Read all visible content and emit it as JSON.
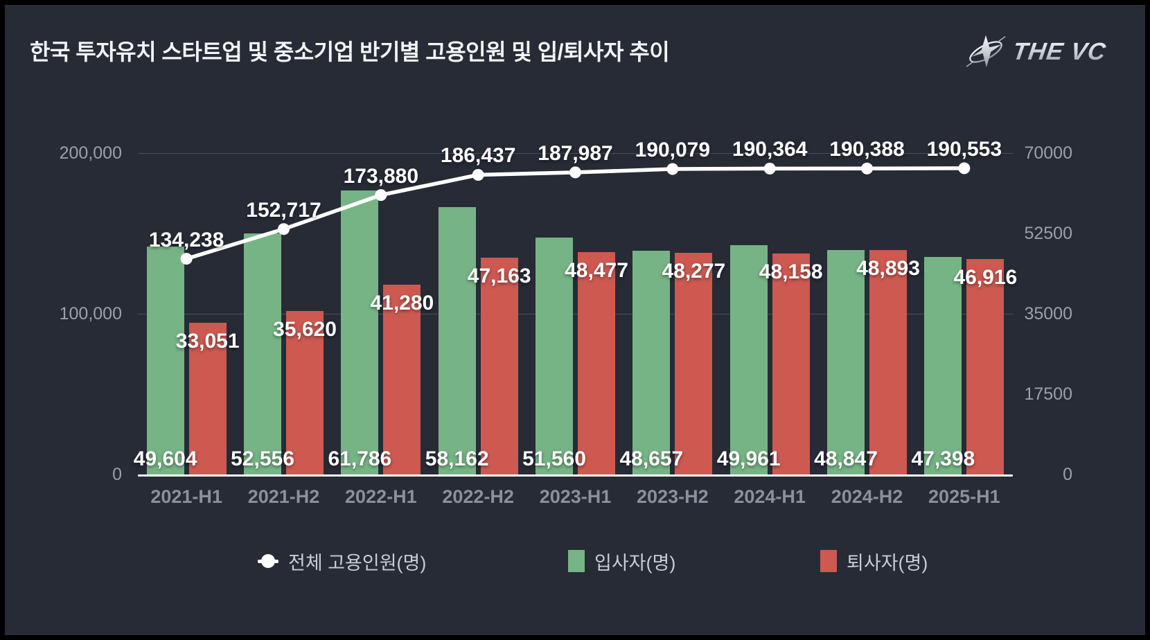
{
  "header": {
    "title": "한국 투자유치 스타트업 및 중소기업 반기별 고용인원 및 입/퇴사자 추이",
    "brand_text": "THE VC"
  },
  "colors": {
    "background": "#272b36",
    "frame_border": "#000000",
    "line_series": "#ffffff",
    "hires_green": "#76b485",
    "leavers_red": "#cd5951",
    "gridline": "#4b505b",
    "axis_tick_text": "#9aa0ac",
    "x_axis_text": "#8b909c",
    "legend_text": "#c8ccd4",
    "data_label_text": "#ffffff"
  },
  "chart_data": {
    "type": "combo: line + grouped bar",
    "title": "한국 투자유치 스타트업 및 중소기업 반기별 고용인원 및 입/퇴사자 추이",
    "categories": [
      "2021-H1",
      "2021-H2",
      "2022-H1",
      "2022-H2",
      "2023-H1",
      "2023-H2",
      "2024-H1",
      "2024-H2",
      "2025-H1"
    ],
    "series": [
      {
        "name": "전체 고용인원(명)",
        "type": "line",
        "y_axis": "left",
        "color": "#ffffff",
        "values": [
          134238,
          152717,
          173880,
          186437,
          187987,
          190079,
          190364,
          190388,
          190553
        ]
      },
      {
        "name": "입사자(명)",
        "type": "bar",
        "y_axis": "right",
        "color": "#76b485",
        "values": [
          49604,
          52556,
          61786,
          58162,
          51560,
          48657,
          49961,
          48847,
          47398
        ]
      },
      {
        "name": "퇴사자(명)",
        "type": "bar",
        "y_axis": "right",
        "color": "#cd5951",
        "values": [
          33051,
          35620,
          41280,
          47163,
          48477,
          48277,
          48158,
          48893,
          46916
        ]
      }
    ],
    "left_axis": {
      "min": 0,
      "max": 200000,
      "tick_values": [
        0,
        100000,
        200000
      ],
      "tick_labels": [
        "0",
        "100,000",
        "200,000"
      ]
    },
    "right_axis": {
      "min": 0,
      "max": 70000,
      "tick_values": [
        0,
        17500,
        35000,
        52500,
        70000
      ],
      "tick_labels": [
        "0",
        "17500",
        "35000",
        "52500",
        "70000"
      ]
    },
    "grid": "horizontal lines at left-axis ticks",
    "legend_position": "bottom",
    "data_labels": "all points labeled"
  },
  "legend": {
    "items": [
      {
        "label": "전체 고용인원(명)",
        "marker": "line-dot",
        "color": "#ffffff"
      },
      {
        "label": "입사자(명)",
        "marker": "square",
        "color": "#76b485"
      },
      {
        "label": "퇴사자(명)",
        "marker": "square",
        "color": "#cd5951"
      }
    ]
  }
}
